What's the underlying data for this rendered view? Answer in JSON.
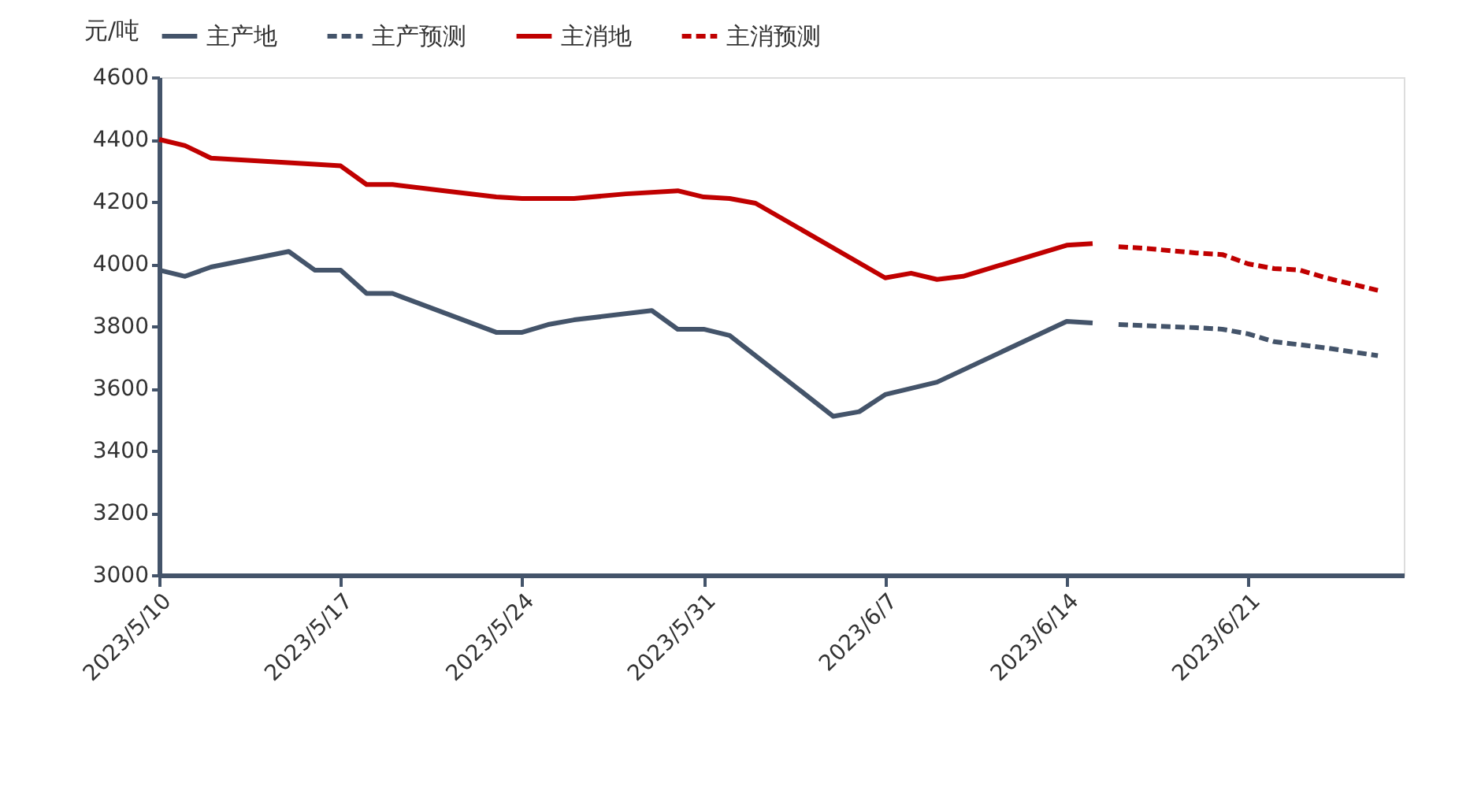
{
  "chart_data": {
    "type": "line",
    "ylabel": "元/吨",
    "ylim": [
      3000,
      4600
    ],
    "yticks": [
      3000,
      3200,
      3400,
      3600,
      3800,
      4000,
      4200,
      4400,
      4600
    ],
    "xlim": [
      "2023-05-10",
      "2023-06-27"
    ],
    "xticks": [
      {
        "value": "2023-05-10",
        "label": "2023/5/10"
      },
      {
        "value": "2023-05-17",
        "label": "2023/5/17"
      },
      {
        "value": "2023-05-24",
        "label": "2023/5/24"
      },
      {
        "value": "2023-05-31",
        "label": "2023/5/31"
      },
      {
        "value": "2023-06-07",
        "label": "2023/6/7"
      },
      {
        "value": "2023-06-14",
        "label": "2023/6/14"
      },
      {
        "value": "2023-06-21",
        "label": "2023/6/21"
      }
    ],
    "grid": false,
    "legend": "top",
    "marker": "none",
    "series": [
      {
        "name": "主产地",
        "color": "#44546a",
        "line_style": "solid",
        "x": [
          "2023-05-10",
          "2023-05-11",
          "2023-05-12",
          "2023-05-15",
          "2023-05-16",
          "2023-05-17",
          "2023-05-18",
          "2023-05-19",
          "2023-05-23",
          "2023-05-24",
          "2023-05-25",
          "2023-05-26",
          "2023-05-29",
          "2023-05-30",
          "2023-05-31",
          "2023-06-01",
          "2023-06-05",
          "2023-06-06",
          "2023-06-07",
          "2023-06-09",
          "2023-06-14",
          "2023-06-15"
        ],
        "values": [
          3980,
          3960,
          3990,
          4040,
          3980,
          3980,
          3905,
          3905,
          3780,
          3780,
          3805,
          3820,
          3850,
          3790,
          3790,
          3770,
          3510,
          3525,
          3580,
          3620,
          3815,
          3810
        ]
      },
      {
        "name": "主产预测",
        "color": "#44546a",
        "line_style": "dashed",
        "x": [
          "2023-06-16",
          "2023-06-19",
          "2023-06-20",
          "2023-06-21",
          "2023-06-22",
          "2023-06-24",
          "2023-06-26"
        ],
        "values": [
          3805,
          3795,
          3790,
          3775,
          3750,
          3730,
          3705
        ]
      },
      {
        "name": "主消地",
        "color": "#c00000",
        "line_style": "solid",
        "x": [
          "2023-05-10",
          "2023-05-11",
          "2023-05-12",
          "2023-05-16",
          "2023-05-17",
          "2023-05-18",
          "2023-05-19",
          "2023-05-21",
          "2023-05-23",
          "2023-05-24",
          "2023-05-26",
          "2023-05-28",
          "2023-05-30",
          "2023-05-31",
          "2023-06-01",
          "2023-06-02",
          "2023-06-07",
          "2023-06-08",
          "2023-06-09",
          "2023-06-10",
          "2023-06-14",
          "2023-06-15"
        ],
        "values": [
          4400,
          4380,
          4340,
          4320,
          4315,
          4255,
          4255,
          4235,
          4215,
          4210,
          4210,
          4225,
          4235,
          4215,
          4210,
          4195,
          3955,
          3970,
          3950,
          3960,
          4060,
          4065
        ]
      },
      {
        "name": "主消预测",
        "color": "#c00000",
        "line_style": "dashed",
        "x": [
          "2023-06-16",
          "2023-06-17",
          "2023-06-19",
          "2023-06-20",
          "2023-06-21",
          "2023-06-22",
          "2023-06-23",
          "2023-06-24",
          "2023-06-26"
        ],
        "values": [
          4055,
          4050,
          4035,
          4030,
          4000,
          3985,
          3980,
          3955,
          3915
        ]
      }
    ]
  }
}
